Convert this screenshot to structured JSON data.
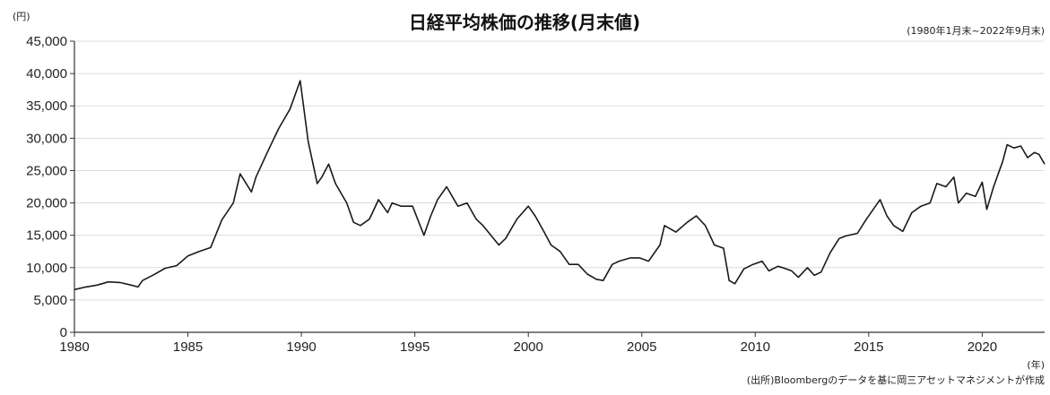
{
  "chart_data": {
    "type": "line",
    "title": "日経平均株価の推移(月末値)",
    "subtitle": "(1980年1月末~2022年9月末)",
    "ylabel": "(円)",
    "xlabel": "(年)",
    "source": "(出所)Bloombergのデータを基に岡三アセットマネジメントが作成",
    "xlim": [
      1980,
      2022.75
    ],
    "ylim": [
      0,
      45000
    ],
    "x_ticks": [
      1980,
      1985,
      1990,
      1995,
      2000,
      2005,
      2010,
      2015,
      2020
    ],
    "x_tick_labels": [
      "1980",
      "1985",
      "1990",
      "1995",
      "2000",
      "2005",
      "2010",
      "2015",
      "2020"
    ],
    "y_ticks": [
      0,
      5000,
      10000,
      15000,
      20000,
      25000,
      30000,
      35000,
      40000,
      45000
    ],
    "y_tick_labels": [
      "0",
      "5,000",
      "10,000",
      "15,000",
      "20,000",
      "25,000",
      "30,000",
      "35,000",
      "40,000",
      "45,000"
    ],
    "grid": true,
    "series": [
      {
        "color": "#1a1a1a",
        "x": [
          1980.0,
          1980.5,
          1981.0,
          1981.5,
          1982.0,
          1982.5,
          1982.8,
          1983.0,
          1983.5,
          1984.0,
          1984.5,
          1985.0,
          1985.5,
          1986.0,
          1986.5,
          1987.0,
          1987.3,
          1987.8,
          1988.0,
          1988.5,
          1989.0,
          1989.5,
          1989.95,
          1990.3,
          1990.7,
          1990.9,
          1991.2,
          1991.5,
          1992.0,
          1992.3,
          1992.6,
          1993.0,
          1993.4,
          1993.8,
          1994.0,
          1994.4,
          1994.9,
          1995.4,
          1995.7,
          1996.0,
          1996.4,
          1996.9,
          1997.3,
          1997.7,
          1998.0,
          1998.7,
          1999.0,
          1999.5,
          2000.0,
          2000.3,
          2000.7,
          2001.0,
          2001.4,
          2001.8,
          2002.2,
          2002.6,
          2003.0,
          2003.3,
          2003.7,
          2004.0,
          2004.5,
          2004.9,
          2005.3,
          2005.8,
          2006.0,
          2006.5,
          2007.0,
          2007.4,
          2007.8,
          2008.2,
          2008.6,
          2008.85,
          2009.1,
          2009.5,
          2009.9,
          2010.3,
          2010.6,
          2011.0,
          2011.2,
          2011.6,
          2011.9,
          2012.3,
          2012.6,
          2012.9,
          2013.3,
          2013.7,
          2014.0,
          2014.5,
          2014.9,
          2015.3,
          2015.5,
          2015.8,
          2016.1,
          2016.5,
          2016.9,
          2017.3,
          2017.7,
          2018.0,
          2018.4,
          2018.75,
          2018.95,
          2019.3,
          2019.7,
          2020.0,
          2020.2,
          2020.5,
          2020.9,
          2021.1,
          2021.4,
          2021.7,
          2022.0,
          2022.3,
          2022.5,
          2022.75
        ],
        "y": [
          6600,
          7000,
          7300,
          7800,
          7700,
          7300,
          7000,
          8000,
          8900,
          9900,
          10300,
          11800,
          12500,
          13100,
          17400,
          20000,
          24500,
          21700,
          24000,
          27800,
          31500,
          34500,
          38900,
          29500,
          23000,
          24000,
          26000,
          23000,
          20000,
          17000,
          16500,
          17500,
          20500,
          18500,
          20000,
          19500,
          19500,
          15000,
          18000,
          20500,
          22500,
          19500,
          20000,
          17500,
          16500,
          13500,
          14500,
          17500,
          19500,
          18000,
          15500,
          13500,
          12500,
          10500,
          10500,
          9000,
          8200,
          8000,
          10500,
          11000,
          11500,
          11500,
          11000,
          13500,
          16500,
          15500,
          17000,
          18000,
          16500,
          13500,
          13000,
          8000,
          7500,
          9800,
          10500,
          11000,
          9500,
          10200,
          10000,
          9500,
          8500,
          10000,
          8800,
          9300,
          12300,
          14500,
          14900,
          15300,
          17500,
          19500,
          20500,
          18000,
          16500,
          15600,
          18500,
          19500,
          20000,
          23000,
          22500,
          24000,
          20000,
          21500,
          21000,
          23200,
          19000,
          22500,
          26400,
          29000,
          28500,
          28800,
          27000,
          27800,
          27500,
          26000
        ]
      }
    ]
  }
}
